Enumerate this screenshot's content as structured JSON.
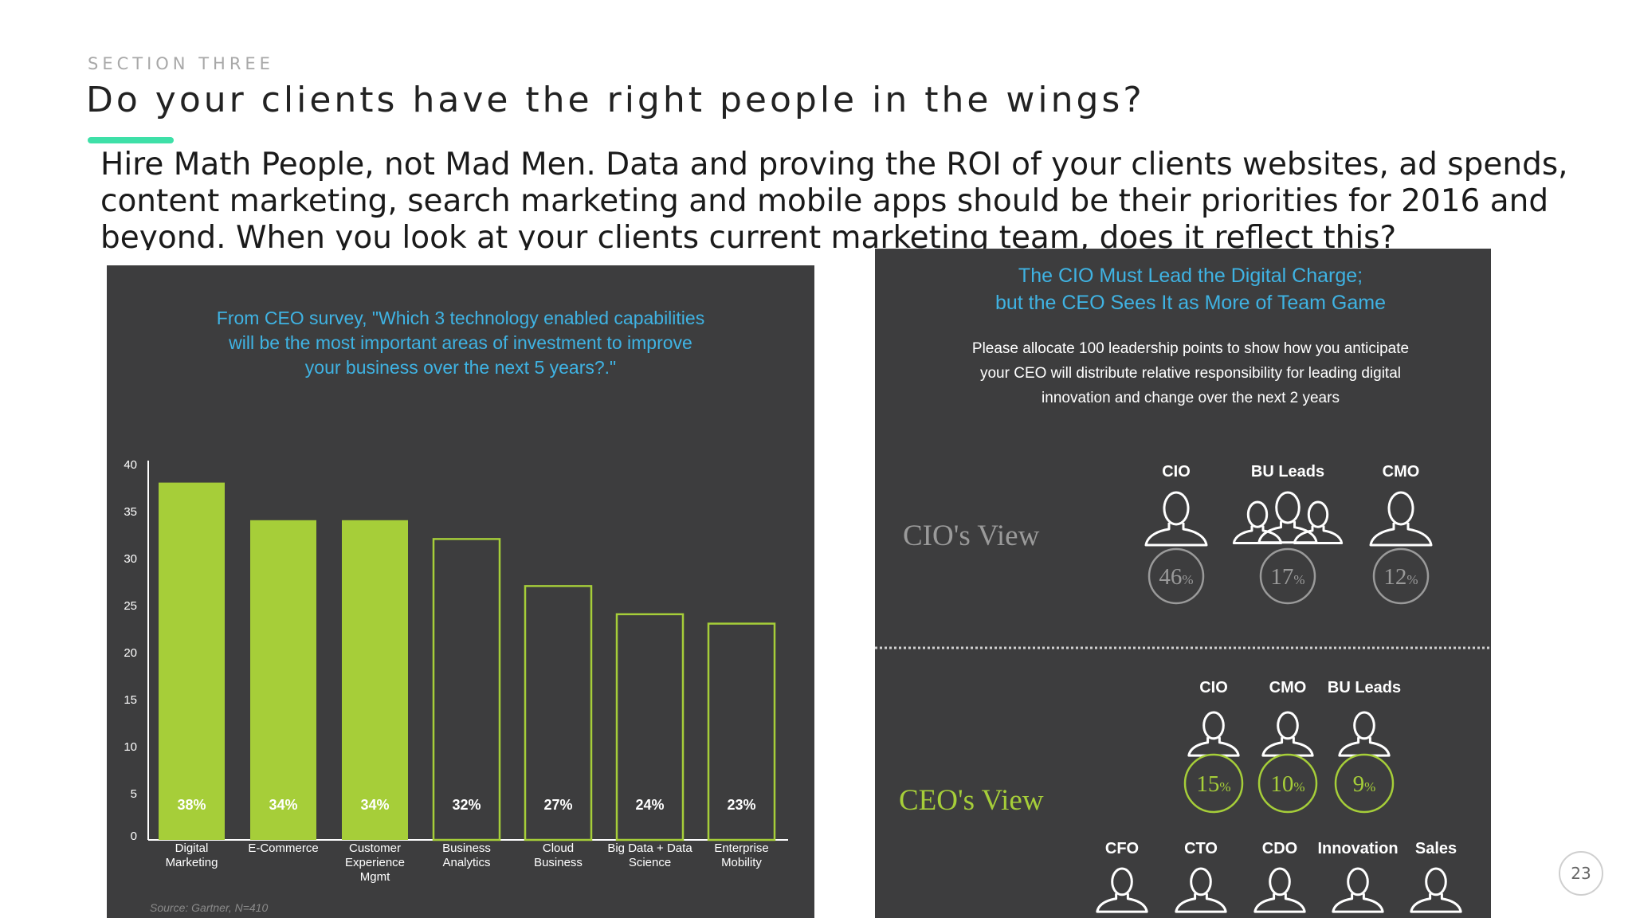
{
  "slide": {
    "section": "SECTION THREE",
    "title": "Do your clients have the right people in the wings?",
    "body": "Hire Math People, not Mad Men. Data and proving the ROI of your clients websites, ad spends, content marketing, search marketing and mobile apps should be their priorities for 2016 and beyond. When you look at your clients current marketing team, does it reflect this?",
    "page_number": "23"
  },
  "chart_data": {
    "type": "bar",
    "title": "From CEO survey, \"Which 3 technology enabled capabilities will be the most important areas of investment to improve your business over the next 5 years?.\"",
    "title_lines": [
      "From CEO survey, \"Which 3 technology enabled capabilities",
      "will be the most important areas of investment to improve",
      "your business over the next 5 years?.\""
    ],
    "categories": [
      [
        "Digital",
        "Marketing"
      ],
      [
        "E-Commerce"
      ],
      [
        "Customer",
        "Experience",
        "Mgmt"
      ],
      [
        "Business",
        "Analytics"
      ],
      [
        "Cloud",
        "Business"
      ],
      [
        "Big Data + Data",
        "Science"
      ],
      [
        "Enterprise",
        "Mobility"
      ]
    ],
    "values": [
      38,
      34,
      34,
      32,
      27,
      24,
      23
    ],
    "labels": [
      "38%",
      "34%",
      "34%",
      "32%",
      "27%",
      "24%",
      "23%"
    ],
    "highlighted": [
      true,
      true,
      true,
      false,
      false,
      false,
      false
    ],
    "ylim": [
      0,
      40
    ],
    "yticks": [
      0,
      5,
      10,
      15,
      20,
      25,
      30,
      35,
      40
    ],
    "source": "Source: Gartner, N=410",
    "colors": {
      "background": "#3d3d3e",
      "accent": "#a6ce39",
      "title": "#3fb3e3",
      "text": "#ffffff"
    }
  },
  "infographic": {
    "title_lines": [
      "The CIO Must Lead the Digital Charge;",
      "but the CEO Sees It as More of Team Game"
    ],
    "subtitle_lines": [
      "Please allocate 100 leadership points to show how you anticipate",
      "your CEO will distribute relative responsibility for leading digital",
      "innovation and change over the next 2 years"
    ],
    "cio_view": {
      "label": "CIO's View",
      "roles": [
        {
          "name": "CIO",
          "value": "46",
          "unit": "%",
          "icon": "person-icon"
        },
        {
          "name": "BU Leads",
          "value": "17",
          "unit": "%",
          "icon": "group-icon"
        },
        {
          "name": "CMO",
          "value": "12",
          "unit": "%",
          "icon": "person-icon"
        }
      ]
    },
    "ceo_view": {
      "label": "CEO's View",
      "roles": [
        {
          "name": "CIO",
          "value": "15",
          "unit": "%",
          "icon": "person-icon"
        },
        {
          "name": "CMO",
          "value": "10",
          "unit": "%",
          "icon": "person-icon"
        },
        {
          "name": "BU Leads",
          "value": "9",
          "unit": "%",
          "icon": "person-icon"
        }
      ],
      "other_roles": [
        "CFO",
        "CTO",
        "CDO",
        "Innovation",
        "Sales"
      ]
    },
    "colors": {
      "title": "#3fb3e3",
      "ceo": "#a6ce39",
      "cio": "#9a9a9a",
      "text": "#ffffff"
    }
  }
}
